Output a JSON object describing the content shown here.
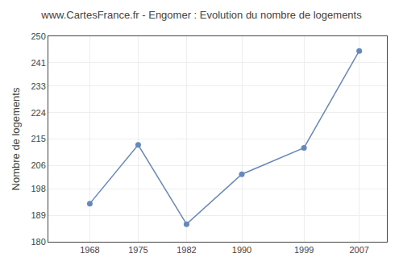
{
  "chart_data": {
    "type": "line",
    "title": "www.CartesFrance.fr - Engomer : Evolution du nombre de logements",
    "ylabel": "Nombre de logements",
    "x": [
      1968,
      1975,
      1982,
      1990,
      1999,
      2007
    ],
    "values": [
      193,
      213,
      186,
      203,
      212,
      245
    ],
    "xlim": [
      1962,
      2011
    ],
    "xticks": [
      1968,
      1975,
      1982,
      1990,
      1999,
      2007
    ],
    "ylim": [
      180,
      250
    ],
    "yticks": [
      180,
      189,
      198,
      206,
      215,
      224,
      233,
      241,
      250
    ],
    "color": "#6688bb",
    "marker": "circle",
    "grid": true
  }
}
